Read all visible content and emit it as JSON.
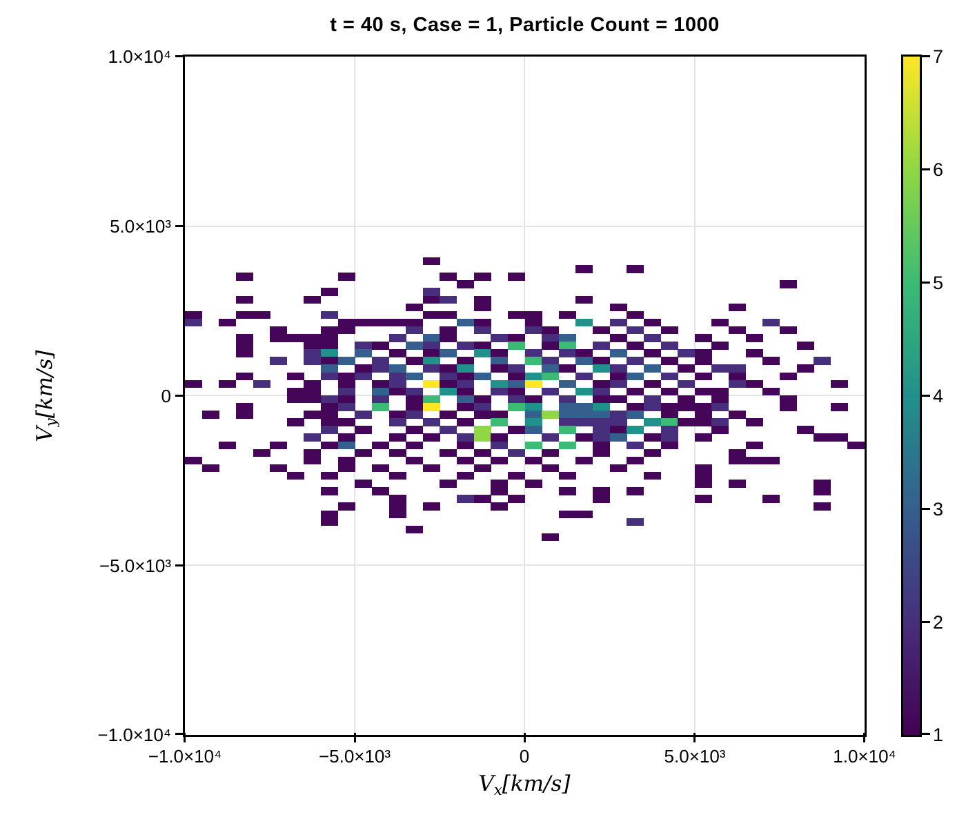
{
  "title": "t = 40 s, Case = 1, Particle Count = 1000",
  "axes": {
    "x": {
      "label_main": "V",
      "label_sub": "x",
      "label_units": "[km/s]",
      "ticks": [
        "−1.0×10⁴",
        "−5.0×10³",
        "0",
        "5.0×10³",
        "1.0×10⁴"
      ]
    },
    "y": {
      "label_main": "V",
      "label_sub": "y",
      "label_units": "[km/s]",
      "ticks": [
        "1.0×10⁴",
        "5.0×10³",
        "0",
        "−5.0×10³",
        "−1.0×10⁴"
      ]
    }
  },
  "colorbar": {
    "min": 1,
    "max": 7,
    "ticks": [
      "7",
      "6",
      "5",
      "4",
      "3",
      "2",
      "1"
    ],
    "colors": [
      "#440154",
      "#472F7D",
      "#355F8D",
      "#21918C",
      "#3BBB75",
      "#90D743",
      "#FDE725"
    ]
  },
  "chart_data": {
    "type": "heatmap",
    "title": "t = 40 s, Case = 1, Particle Count = 1000",
    "xlabel": "Vx [km/s]",
    "ylabel": "Vy [km/s]",
    "xlim": [
      -10000,
      10000
    ],
    "ylim": [
      -10000,
      10000
    ],
    "xticks": [
      -10000,
      -5000,
      0,
      5000,
      10000
    ],
    "yticks": [
      10000,
      5000,
      0,
      -5000,
      -10000
    ],
    "grid": "on",
    "legend": "colorbar-right",
    "colormap": "viridis",
    "value_range": [
      1,
      7
    ],
    "x_bin_width": 500,
    "y_bin_height": 226,
    "grid_x_min": -10000,
    "grid_y_max": 4080,
    "palette": {
      "1": "#45065A",
      "2": "#472F7D",
      "3": "#355F8D",
      "4": "#21918C",
      "5": "#3BBB75",
      "6": "#90D743",
      "7": "#FDE725"
    },
    "grid_rows": [
      "0000000000000010000000000000000000000000",
      "0000000000000000000000010010000000000000",
      "0001000001000001010100000000000000000000",
      "0000000000000000100000000000000000010000",
      "0000000010000020000000000000000000000000",
      "0001000100000012010000010000000000000000",
      "0000000000000100010000000100000010000000",
      "1001100020000011000110100010000000000000",
      "2010000001111100310010040201000100200000",
      "0000010011000201020021001020100010010000",
      "0001011110002031002102300102001001000000",
      "0001000110210320210501502010200100001000",
      "0001000240301013041020210301021001000000",
      "0000020213020140103052031020101000100200",
      "0000000030123021401203104203010220001000",
      "0001001021202302130145020130201010010000",
      "1010200101012071204370301201020021000010",
      "0000001102031204102102042010101100100000",
      "0000001121020150310210201102010100010000",
      "0001000012050170120540334012111200010010",
      "0101000110201201011036333230101010000000",
      "0000001011002020105040222204511201000000",
      "0000000020100102060130502140200100001000",
      "0000000201001010261002012301201000000110",
      "0010010013010100102050501020100001000001",
      "0000100100101001010201001001000010000000",
      "1000000101000100101010010010000011100000",
      "0100010001010010010001000100001000000000",
      "0000001010001000100100100001001000000000",
      "0000000000100001001010000000001010000100",
      "0000000010010000001000101010000000000100",
      "0000000000001000210100001000001000100000",
      "0000000001001010001000000000000000000100",
      "0000000010001000000000110000000000000000",
      "0000000010000000000000000020000000000000",
      "0000000000000100000000000000000000000000",
      "0000000000000000000001000000000000000000"
    ]
  }
}
